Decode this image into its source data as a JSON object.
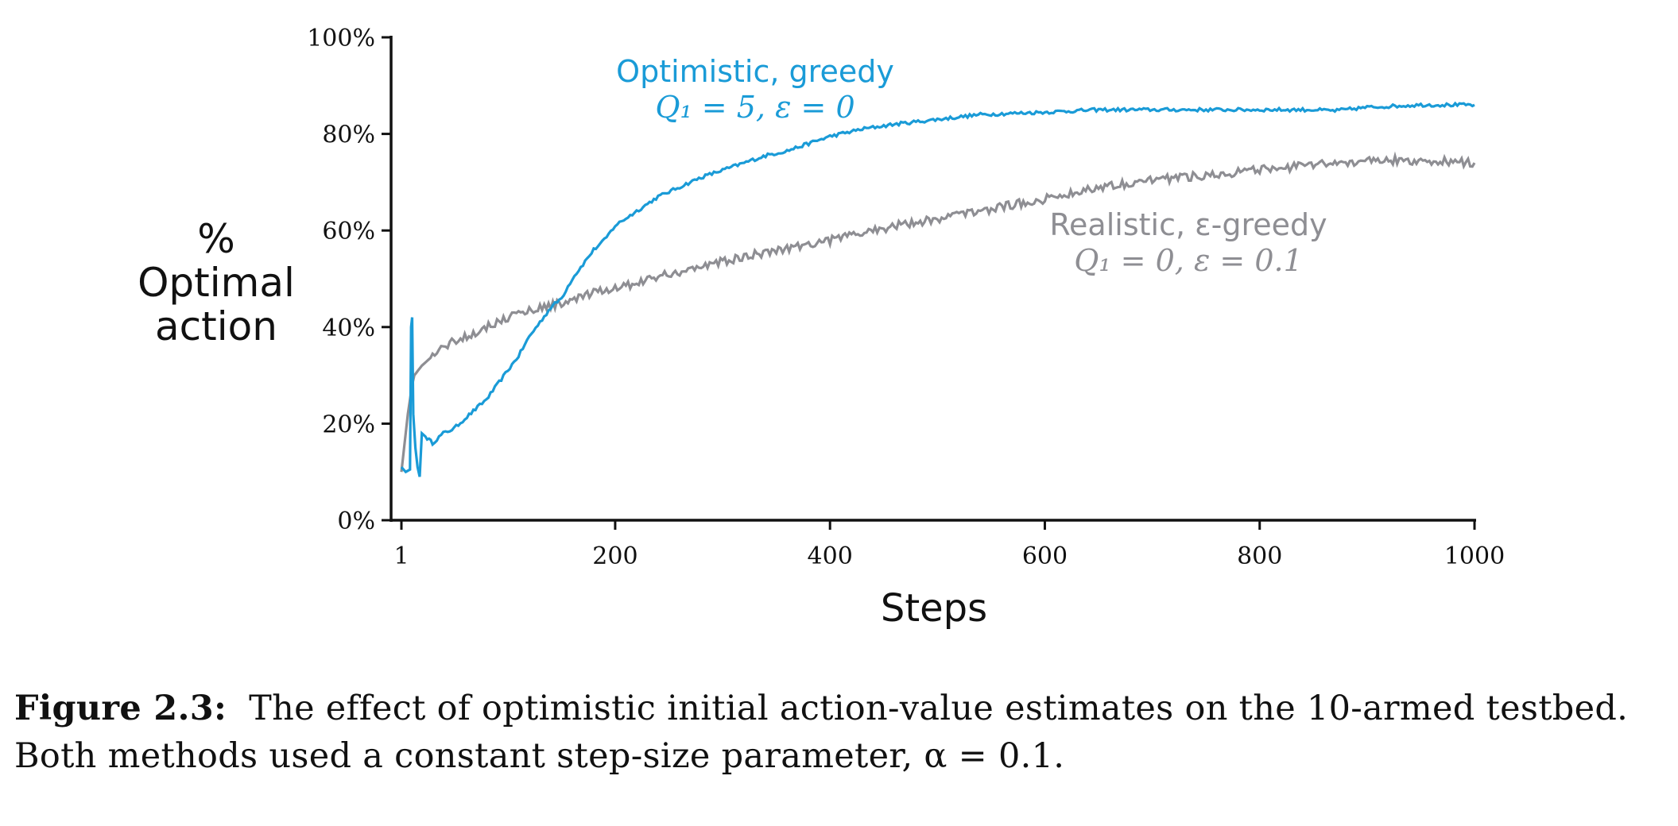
{
  "chart_data": {
    "type": "line",
    "ylabel_lines": [
      "%",
      "Optimal",
      "action"
    ],
    "xlabel": "Steps",
    "xlim": [
      1,
      1000
    ],
    "ylim": [
      0,
      100
    ],
    "x_ticks": [
      1,
      200,
      400,
      600,
      800,
      1000
    ],
    "x_tick_labels": [
      "1",
      "200",
      "400",
      "600",
      "800",
      "1000"
    ],
    "y_ticks": [
      0,
      20,
      40,
      60,
      80,
      100
    ],
    "y_tick_labels": [
      "0%",
      "20%",
      "40%",
      "60%",
      "80%",
      "100%"
    ],
    "grid": false,
    "series": [
      {
        "name": "Optimistic, greedy",
        "param_text": "Q₁ = 5,  ε = 0",
        "color": "#1a9bd7",
        "points": [
          [
            1,
            11
          ],
          [
            5,
            10
          ],
          [
            9,
            10.5
          ],
          [
            10,
            40
          ],
          [
            11,
            42
          ],
          [
            12,
            22
          ],
          [
            14,
            15
          ],
          [
            16,
            11
          ],
          [
            18,
            9
          ],
          [
            20,
            18
          ],
          [
            25,
            17
          ],
          [
            30,
            16
          ],
          [
            40,
            18
          ],
          [
            50,
            19
          ],
          [
            60,
            21
          ],
          [
            70,
            23
          ],
          [
            80,
            25
          ],
          [
            90,
            28
          ],
          [
            100,
            31
          ],
          [
            110,
            34
          ],
          [
            120,
            38
          ],
          [
            130,
            41
          ],
          [
            140,
            44
          ],
          [
            150,
            46
          ],
          [
            160,
            50
          ],
          [
            170,
            53
          ],
          [
            180,
            56
          ],
          [
            190,
            58
          ],
          [
            200,
            61
          ],
          [
            220,
            64
          ],
          [
            240,
            67
          ],
          [
            260,
            69
          ],
          [
            280,
            71
          ],
          [
            300,
            72.5
          ],
          [
            320,
            74
          ],
          [
            340,
            75.5
          ],
          [
            360,
            76.5
          ],
          [
            380,
            78
          ],
          [
            400,
            79.5
          ],
          [
            430,
            81
          ],
          [
            460,
            82
          ],
          [
            500,
            83
          ],
          [
            540,
            84
          ],
          [
            600,
            84.5
          ],
          [
            650,
            85
          ],
          [
            700,
            85
          ],
          [
            800,
            85
          ],
          [
            850,
            85
          ],
          [
            870,
            84.8
          ],
          [
            900,
            85.5
          ],
          [
            950,
            86
          ],
          [
            1000,
            86
          ]
        ],
        "noise": 0.35
      },
      {
        "name": "Realistic, ε-greedy",
        "param_text": "Q₁ = 0,  ε = 0.1",
        "color": "#8e8e93",
        "points": [
          [
            1,
            10
          ],
          [
            3,
            14
          ],
          [
            5,
            18
          ],
          [
            7,
            22
          ],
          [
            9,
            25
          ],
          [
            11,
            28
          ],
          [
            13,
            30
          ],
          [
            20,
            32
          ],
          [
            30,
            34
          ],
          [
            40,
            36
          ],
          [
            50,
            37
          ],
          [
            60,
            38
          ],
          [
            70,
            39
          ],
          [
            80,
            40
          ],
          [
            100,
            42
          ],
          [
            120,
            43.5
          ],
          [
            140,
            44.5
          ],
          [
            160,
            45.5
          ],
          [
            180,
            47
          ],
          [
            200,
            48
          ],
          [
            250,
            51
          ],
          [
            300,
            53.5
          ],
          [
            350,
            56
          ],
          [
            400,
            58
          ],
          [
            450,
            60.5
          ],
          [
            500,
            62.5
          ],
          [
            550,
            64.5
          ],
          [
            600,
            66.5
          ],
          [
            650,
            69
          ],
          [
            700,
            70.5
          ],
          [
            750,
            71.5
          ],
          [
            800,
            72.5
          ],
          [
            850,
            73.5
          ],
          [
            900,
            74.5
          ],
          [
            950,
            74.5
          ],
          [
            1000,
            74
          ]
        ],
        "noise": 0.9
      }
    ]
  },
  "caption": {
    "label": "Figure 2.3:",
    "line1": "The effect of optimistic initial action-value estimates on the 10-armed testbed.",
    "line2": "Both methods used a constant step-size parameter, α = 0.1."
  }
}
